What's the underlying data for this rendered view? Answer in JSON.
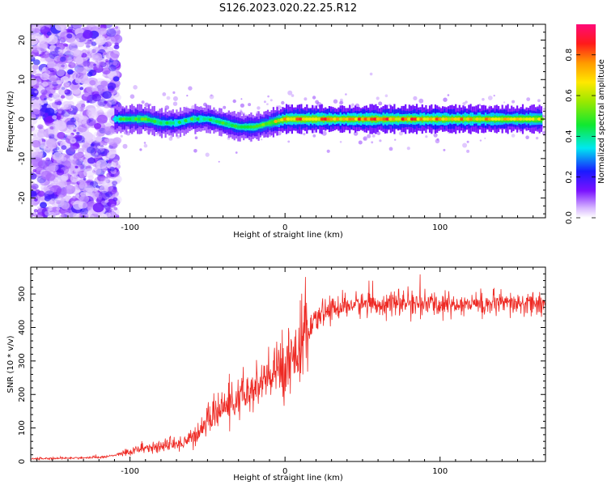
{
  "figure": {
    "title": "S126.2023.020.22.25.R12"
  },
  "colors": {
    "snr_line": "#ee2a24",
    "frame": "#000000"
  },
  "chart_data": [
    {
      "type": "heatmap",
      "xlabel": "Height of straight line (km)",
      "ylabel": "Frequency (Hz)",
      "xlim": [
        -164,
        168
      ],
      "ylim": [
        -25,
        24
      ],
      "x_ticks": [
        -100,
        0,
        100
      ],
      "y_ticks": [
        -20,
        -10,
        0,
        10,
        20
      ],
      "grid": false,
      "ridge": {
        "description_free": true,
        "x": [
          -110,
          -100,
          -90,
          -80,
          -70,
          -60,
          -50,
          -40,
          -30,
          -20,
          -10,
          0,
          20,
          40,
          60,
          80,
          100,
          120,
          140,
          160,
          166
        ],
        "freq": [
          0,
          0,
          0,
          -1,
          -1,
          0,
          0,
          -1,
          -2,
          -2,
          -1,
          0,
          0,
          0,
          0,
          0,
          0,
          0,
          0,
          0,
          0
        ],
        "amplitude": [
          0.45,
          0.55,
          0.55,
          0.5,
          0.45,
          0.5,
          0.45,
          0.5,
          0.5,
          0.5,
          0.6,
          0.85,
          0.85,
          0.8,
          0.85,
          0.85,
          0.8,
          0.8,
          0.75,
          0.75,
          0.7
        ]
      },
      "noise_region_x": [
        -164,
        -108
      ],
      "colorbar": {
        "label": "Normalized spectral amplitude",
        "range": [
          0,
          0.95
        ],
        "ticks": [
          0.0,
          0.2,
          0.4,
          0.6,
          0.8
        ],
        "tick_labels": [
          "0.0",
          "0.2",
          "0.4",
          "0.6",
          "0.8"
        ]
      }
    },
    {
      "type": "line",
      "xlabel": "Height of straight line (km)",
      "ylabel": "SNR (10 * v/v)",
      "xlim": [
        -164,
        168
      ],
      "ylim": [
        0,
        580
      ],
      "x_ticks": [
        -100,
        0,
        100
      ],
      "y_ticks": [
        0,
        100,
        200,
        300,
        400,
        500
      ],
      "grid": false,
      "series": [
        {
          "x": [
            -164,
            -140,
            -120,
            -110,
            -100,
            -90,
            -80,
            -70,
            -60,
            -55,
            -50,
            -45,
            -40,
            -35,
            -30,
            -25,
            -20,
            -15,
            -10,
            -5,
            0,
            5,
            10,
            15,
            20,
            25,
            30,
            40,
            50,
            60,
            80,
            100,
            120,
            140,
            160,
            168
          ],
          "values": [
            8,
            10,
            12,
            18,
            30,
            40,
            45,
            50,
            70,
            90,
            120,
            145,
            160,
            170,
            185,
            195,
            215,
            230,
            250,
            270,
            290,
            320,
            345,
            380,
            420,
            445,
            455,
            465,
            470,
            470,
            472,
            468,
            470,
            468,
            470,
            470
          ]
        }
      ]
    }
  ]
}
